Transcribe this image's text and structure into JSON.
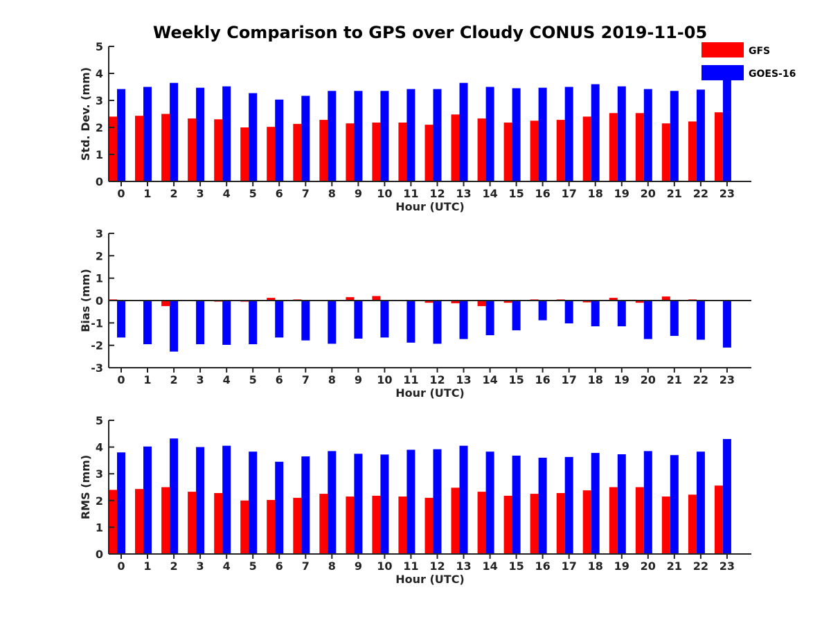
{
  "title": "Weekly Comparison to GPS over Cloudy CONUS 2019-11-05",
  "colors": {
    "gfs": "#ff0000",
    "goes": "#0000ff",
    "axis": "#222222"
  },
  "legend": {
    "placement": "top-right",
    "entries": [
      {
        "label": "GFS",
        "color": "#ff0000"
      },
      {
        "label": "GOES-16",
        "color": "#0000ff"
      }
    ]
  },
  "chart_data": [
    {
      "type": "bar",
      "ylabel": "Std. Dev. (mm)",
      "xlabel": "Hour (UTC)",
      "ylim": [
        0,
        5
      ],
      "yticks": [
        0,
        1,
        2,
        3,
        4,
        5
      ],
      "categories": [
        "0",
        "1",
        "2",
        "3",
        "4",
        "5",
        "6",
        "7",
        "8",
        "9",
        "10",
        "11",
        "12",
        "13",
        "14",
        "15",
        "16",
        "17",
        "18",
        "19",
        "20",
        "21",
        "22",
        "23"
      ],
      "series": [
        {
          "name": "GFS",
          "values": [
            2.4,
            2.43,
            2.5,
            2.33,
            2.3,
            2.0,
            2.02,
            2.13,
            2.28,
            2.15,
            2.18,
            2.18,
            2.1,
            2.48,
            2.33,
            2.18,
            2.25,
            2.28,
            2.4,
            2.53,
            2.53,
            2.15,
            2.22,
            2.56
          ]
        },
        {
          "name": "GOES-16",
          "values": [
            3.42,
            3.5,
            3.65,
            3.47,
            3.52,
            3.27,
            3.03,
            3.17,
            3.35,
            3.35,
            3.35,
            3.42,
            3.42,
            3.65,
            3.5,
            3.45,
            3.47,
            3.5,
            3.6,
            3.52,
            3.42,
            3.35,
            3.4,
            3.9
          ]
        }
      ]
    },
    {
      "type": "bar",
      "ylabel": "Bias (mm)",
      "xlabel": "Hour (UTC)",
      "ylim": [
        -3,
        3
      ],
      "yticks": [
        -3,
        -2,
        -1,
        0,
        1,
        2,
        3
      ],
      "zero_line": true,
      "categories": [
        "0",
        "1",
        "2",
        "3",
        "4",
        "5",
        "6",
        "7",
        "8",
        "9",
        "10",
        "11",
        "12",
        "13",
        "14",
        "15",
        "16",
        "17",
        "18",
        "19",
        "20",
        "21",
        "22",
        "23"
      ],
      "series": [
        {
          "name": "GFS",
          "values": [
            0.05,
            -0.03,
            -0.25,
            -0.03,
            -0.05,
            -0.05,
            0.12,
            0.05,
            -0.03,
            0.15,
            0.2,
            0.03,
            -0.1,
            -0.12,
            -0.25,
            -0.1,
            0.05,
            0.05,
            -0.08,
            0.12,
            -0.1,
            0.18,
            0.05,
            0.03
          ]
        },
        {
          "name": "GOES-16",
          "values": [
            -1.65,
            -1.95,
            -2.28,
            -1.95,
            -1.98,
            -1.95,
            -1.65,
            -1.78,
            -1.93,
            -1.7,
            -1.65,
            -1.88,
            -1.93,
            -1.72,
            -1.55,
            -1.33,
            -0.88,
            -1.02,
            -1.15,
            -1.15,
            -1.72,
            -1.58,
            -1.75,
            -2.1
          ]
        }
      ]
    },
    {
      "type": "bar",
      "ylabel": "RMS (mm)",
      "xlabel": "Hour (UTC)",
      "ylim": [
        0,
        5
      ],
      "yticks": [
        0,
        1,
        2,
        3,
        4,
        5
      ],
      "categories": [
        "0",
        "1",
        "2",
        "3",
        "4",
        "5",
        "6",
        "7",
        "8",
        "9",
        "10",
        "11",
        "12",
        "13",
        "14",
        "15",
        "16",
        "17",
        "18",
        "19",
        "20",
        "21",
        "22",
        "23"
      ],
      "series": [
        {
          "name": "GFS",
          "values": [
            2.4,
            2.43,
            2.5,
            2.33,
            2.28,
            2.0,
            2.02,
            2.1,
            2.25,
            2.15,
            2.18,
            2.15,
            2.1,
            2.48,
            2.33,
            2.18,
            2.25,
            2.28,
            2.38,
            2.5,
            2.5,
            2.15,
            2.22,
            2.56
          ]
        },
        {
          "name": "GOES-16",
          "values": [
            3.8,
            4.02,
            4.32,
            4.0,
            4.05,
            3.83,
            3.45,
            3.65,
            3.85,
            3.75,
            3.72,
            3.9,
            3.92,
            4.05,
            3.83,
            3.68,
            3.6,
            3.63,
            3.78,
            3.73,
            3.85,
            3.7,
            3.83,
            4.3
          ]
        }
      ]
    }
  ]
}
